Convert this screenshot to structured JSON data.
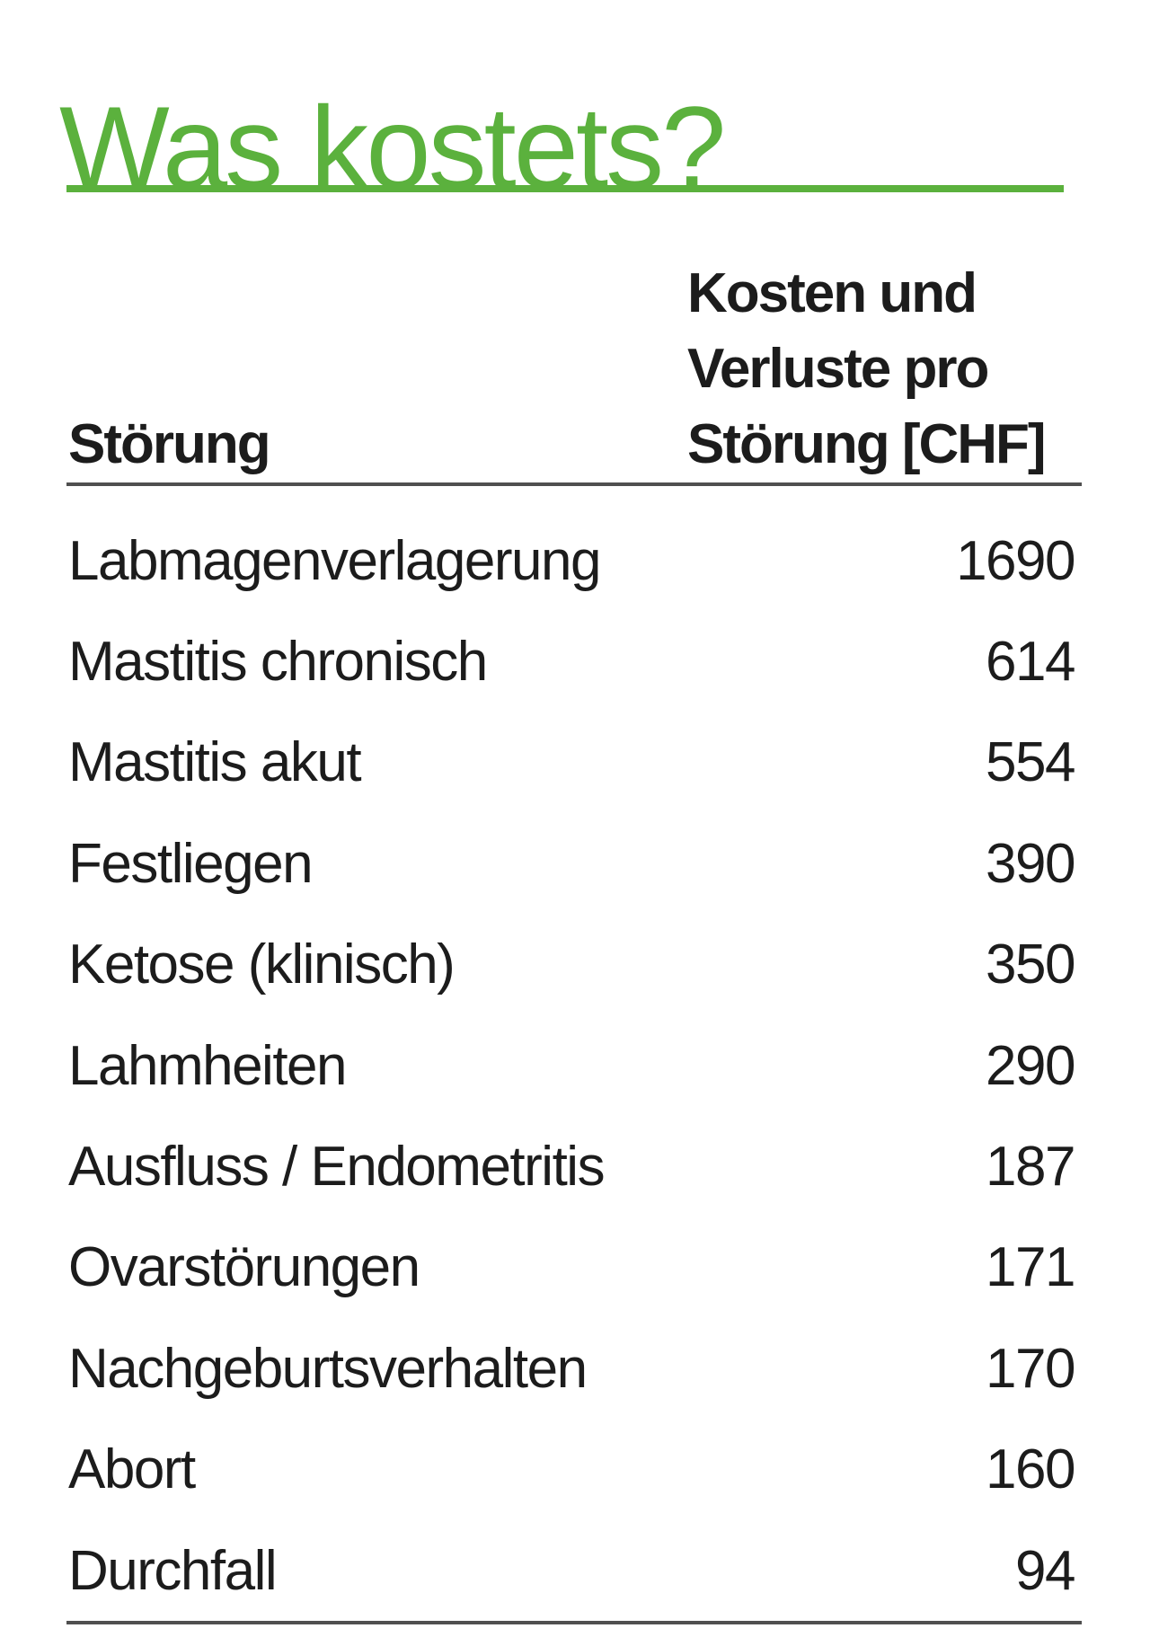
{
  "page": {
    "title": "Was kostets?",
    "accent_color": "#5BB13D",
    "rule_color": "#4f4f4f"
  },
  "table": {
    "col1_header": "Störung",
    "col2_header_lines": [
      "Kosten und",
      "Verluste pro",
      "Störung [CHF]"
    ],
    "rows": [
      {
        "label": "Labmagenverlagerung",
        "value": "1690"
      },
      {
        "label": "Mastitis chronisch",
        "value": "614"
      },
      {
        "label": "Mastitis akut",
        "value": "554"
      },
      {
        "label": "Festliegen",
        "value": "390"
      },
      {
        "label": "Ketose (klinisch)",
        "value": "350"
      },
      {
        "label": "Lahmheiten",
        "value": "290"
      },
      {
        "label": "Ausfluss / Endometritis",
        "value": "187"
      },
      {
        "label": "Ovarstörungen",
        "value": "171"
      },
      {
        "label": "Nachgeburtsverhalten",
        "value": "170"
      },
      {
        "label": "Abort",
        "value": "160"
      },
      {
        "label": "Durchfall",
        "value": "94"
      }
    ]
  },
  "chart_data": {
    "type": "table",
    "title": "Was kostets?",
    "columns": [
      "Störung",
      "Kosten und Verluste pro Störung [CHF]"
    ],
    "rows": [
      [
        "Labmagenverlagerung",
        1690
      ],
      [
        "Mastitis chronisch",
        614
      ],
      [
        "Mastitis akut",
        554
      ],
      [
        "Festliegen",
        390
      ],
      [
        "Ketose (klinisch)",
        350
      ],
      [
        "Lahmheiten",
        290
      ],
      [
        "Ausfluss / Endometritis",
        187
      ],
      [
        "Ovarstörungen",
        171
      ],
      [
        "Nachgeburtsverhalten",
        170
      ],
      [
        "Abort",
        160
      ],
      [
        "Durchfall",
        94
      ]
    ]
  }
}
